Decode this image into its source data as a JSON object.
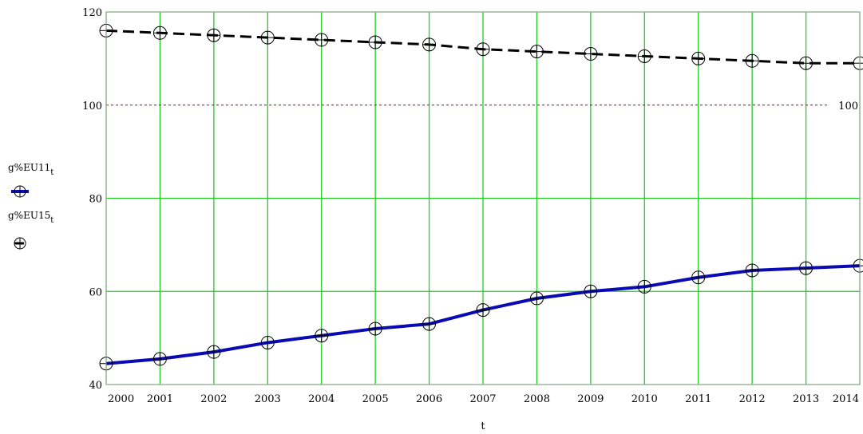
{
  "chart_data": {
    "type": "line",
    "title": "",
    "xlabel": "t",
    "ylabel": "",
    "xlim": [
      2000,
      2014
    ],
    "ylim": [
      40,
      120
    ],
    "x": [
      2000,
      2001,
      2002,
      2003,
      2004,
      2005,
      2006,
      2007,
      2008,
      2009,
      2010,
      2011,
      2012,
      2013,
      2014
    ],
    "x_tick_labels": [
      "2000",
      "2001",
      "2002",
      "2003",
      "2004",
      "2005",
      "2006",
      "2007",
      "2008",
      "2009",
      "2010",
      "2011",
      "2012",
      "2013",
      "2014"
    ],
    "y_ticks": [
      40,
      60,
      80,
      100,
      120
    ],
    "grid": true,
    "legend_position": "left",
    "series": [
      {
        "name": "g%EU11",
        "name_main": "g%EU11",
        "name_sub": "t",
        "color": "#0a0ab4",
        "line_style": "solid",
        "marker": "circle-plus",
        "values": [
          44.5,
          45.5,
          47,
          49,
          50.5,
          52,
          53,
          56,
          58.5,
          60,
          61,
          63,
          64.5,
          65,
          65.5
        ]
      },
      {
        "name": "g%EU15",
        "name_main": "g%EU15",
        "name_sub": "t",
        "color": "#000000",
        "line_style": "dashed",
        "marker": "circle-plus",
        "values": [
          116,
          115.5,
          115,
          114.5,
          114,
          113.5,
          113,
          112,
          111.5,
          111,
          110.5,
          110,
          109.5,
          109,
          109
        ]
      }
    ],
    "reference_line": {
      "value": 100,
      "label": "100",
      "color": "#b40000",
      "style": "dotted"
    },
    "colors": {
      "grid": "#22cc22",
      "frame": "#a0a0a0"
    }
  }
}
